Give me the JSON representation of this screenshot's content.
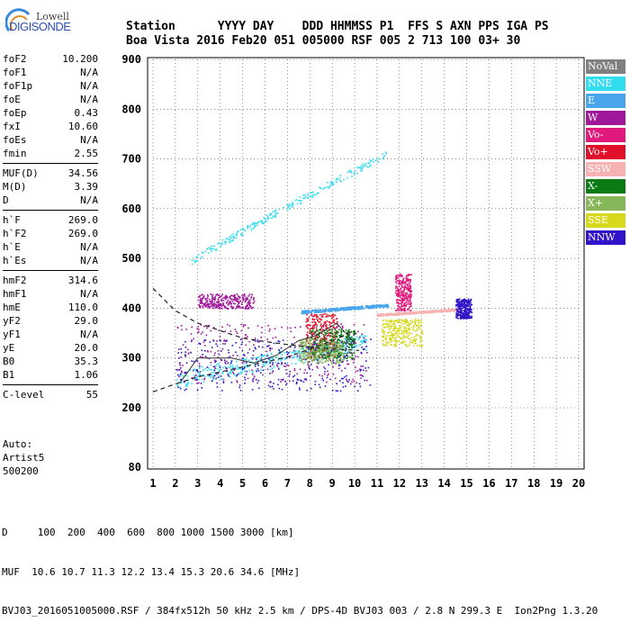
{
  "logo": {
    "lowell": "Lowell",
    "digisonde": "DIGISONDE"
  },
  "header": {
    "line1": "Station      YYYY DAY    DDD HHMMSS P1  FFS S AXN PPS IGA PS",
    "line2": "Boa Vista 2016 Feb20 051 005000 RSF 005 2 713 100 03+ 30"
  },
  "params": {
    "group1": [
      {
        "name": "foF2",
        "value": "10.200"
      },
      {
        "name": "foF1",
        "value": "N/A"
      },
      {
        "name": "foF1p",
        "value": "N/A"
      },
      {
        "name": "foE",
        "value": "N/A"
      },
      {
        "name": "foEp",
        "value": "0.43"
      },
      {
        "name": "fxI",
        "value": "10.60"
      },
      {
        "name": "foEs",
        "value": "N/A"
      },
      {
        "name": "fmin",
        "value": "2.55"
      }
    ],
    "group2": [
      {
        "name": "MUF(D)",
        "value": "34.56"
      },
      {
        "name": "M(D)",
        "value": "3.39"
      },
      {
        "name": "D",
        "value": "N/A"
      }
    ],
    "group3": [
      {
        "name": "h`F",
        "value": "269.0"
      },
      {
        "name": "h`F2",
        "value": "269.0"
      },
      {
        "name": "h`E",
        "value": "N/A"
      },
      {
        "name": "h`Es",
        "value": "N/A"
      }
    ],
    "group4": [
      {
        "name": "hmF2",
        "value": "314.6"
      },
      {
        "name": "hmF1",
        "value": "N/A"
      },
      {
        "name": "hmE",
        "value": "110.0"
      },
      {
        "name": "yF2",
        "value": "29.0"
      },
      {
        "name": "yF1",
        "value": "N/A"
      },
      {
        "name": "yE",
        "value": "20.0"
      },
      {
        "name": "B0",
        "value": "35.3"
      },
      {
        "name": "B1",
        "value": "1.06"
      }
    ],
    "group5": [
      {
        "name": "C-level",
        "value": "55"
      }
    ]
  },
  "auto": {
    "line1": "Auto:",
    "line2": "Artist5",
    "line3": "500200"
  },
  "legend": [
    {
      "label": "NoVal",
      "color": "#808080",
      "text_color": "#ffffff"
    },
    {
      "label": "NNE",
      "color": "#33ddf0",
      "text_color": "#ffffff"
    },
    {
      "label": "E",
      "color": "#4aa6ec",
      "text_color": "#ffffff"
    },
    {
      "label": "W",
      "color": "#a0189a",
      "text_color": "#ffffff"
    },
    {
      "label": "Vo-",
      "color": "#e0197c",
      "text_color": "#ffffff"
    },
    {
      "label": "Vo+",
      "color": "#e0102a",
      "text_color": "#ffffff"
    },
    {
      "label": "SSW",
      "color": "#f6b2b2",
      "text_color": "#ffffff"
    },
    {
      "label": "X-",
      "color": "#0a7a14",
      "text_color": "#ffffff"
    },
    {
      "label": "X+",
      "color": "#86b85a",
      "text_color": "#ffffff"
    },
    {
      "label": "SSE",
      "color": "#d6d91c",
      "text_color": "#ffffff"
    },
    {
      "label": "NNW",
      "color": "#3213c9",
      "text_color": "#ffffff"
    }
  ],
  "footer": {
    "line1": "D     100  200  400  600  800 1000 1500 3000 [km]",
    "line2": "MUF  10.6 10.7 11.3 12.2 13.4 15.3 20.6 34.6 [MHz]",
    "line3": "BVJ03_2016051005000.RSF / 384fx512h 50 kHz 2.5 km / DPS-4D BVJ03 003 / 2.8 N 299.3 E  Ion2Png 1.3.20"
  },
  "chart_data": {
    "type": "scatter",
    "x_ticks": [
      "1",
      "2",
      "3",
      "4",
      "5",
      "6",
      "7",
      "8",
      "9",
      "10",
      "11",
      "12",
      "13",
      "14",
      "15",
      "16",
      "17",
      "18",
      "19",
      "20"
    ],
    "y_ticks": [
      "80",
      "200",
      "300",
      "400",
      "500",
      "600",
      "700",
      "800",
      "900"
    ],
    "xlim": [
      1,
      20
    ],
    "ylim": [
      80,
      900
    ],
    "series": [
      {
        "name": "NNE",
        "color": "#33ddf0",
        "clusters": [
          {
            "x": [
              2.7,
              11.4
            ],
            "y": [
              495,
              710
            ],
            "kind": "trace"
          },
          {
            "x": [
              2.0,
              10.5
            ],
            "y": [
              240,
              350
            ],
            "kind": "band"
          }
        ]
      },
      {
        "name": "E",
        "color": "#4aa6ec",
        "clusters": [
          {
            "x": [
              7.6,
              11.5
            ],
            "y": [
              390,
              410
            ],
            "kind": "band"
          }
        ]
      },
      {
        "name": "W",
        "color": "#a0189a",
        "clusters": [
          {
            "x": [
              2.0,
              10.6
            ],
            "y": [
              250,
              370
            ],
            "kind": "cloud"
          },
          {
            "x": [
              3.0,
              5.5
            ],
            "y": [
              400,
              430
            ],
            "kind": "cloud"
          }
        ]
      },
      {
        "name": "Vo-",
        "color": "#e0197c",
        "clusters": [
          {
            "x": [
              11.8,
              12.5
            ],
            "y": [
              395,
              470
            ],
            "kind": "cloud"
          }
        ]
      },
      {
        "name": "Vo+",
        "color": "#e0102a",
        "clusters": [
          {
            "x": [
              7.8,
              9.2
            ],
            "y": [
              300,
              390
            ],
            "kind": "cloud"
          }
        ]
      },
      {
        "name": "SSW",
        "color": "#f6b2b2",
        "clusters": [
          {
            "x": [
              11.0,
              14.5
            ],
            "y": [
              385,
              400
            ],
            "kind": "band"
          }
        ]
      },
      {
        "name": "X-",
        "color": "#0a7a14",
        "clusters": [
          {
            "x": [
              8.0,
              10.0
            ],
            "y": [
              300,
              360
            ],
            "kind": "cloud"
          }
        ]
      },
      {
        "name": "X+",
        "color": "#86b85a",
        "clusters": [
          {
            "x": [
              7.5,
              9.5
            ],
            "y": [
              290,
              340
            ],
            "kind": "cloud"
          }
        ]
      },
      {
        "name": "SSE",
        "color": "#d6d91c",
        "clusters": [
          {
            "x": [
              11.2,
              13.0
            ],
            "y": [
              325,
              380
            ],
            "kind": "cloud"
          }
        ]
      },
      {
        "name": "NNW",
        "color": "#3213c9",
        "clusters": [
          {
            "x": [
              2.0,
              10.7
            ],
            "y": [
              235,
              340
            ],
            "kind": "cloud"
          },
          {
            "x": [
              14.5,
              15.2
            ],
            "y": [
              380,
              420
            ],
            "kind": "cloud"
          }
        ]
      }
    ],
    "profile_curve": {
      "x": [
        1.0,
        2.0,
        3.0,
        4.0,
        5.0,
        6.0,
        7.0,
        8.0,
        9.0,
        10.0,
        10.2
      ],
      "y": [
        440,
        395,
        370,
        355,
        340,
        333,
        327,
        322,
        318,
        316,
        315
      ]
    },
    "bottom_curve": {
      "x": [
        1.0,
        2.0,
        3.0,
        4.0,
        5.0,
        6.0,
        7.0,
        8.0,
        9.0,
        10.0
      ],
      "y": [
        232,
        248,
        262,
        272,
        282,
        292,
        302,
        318,
        335,
        355
      ]
    }
  }
}
